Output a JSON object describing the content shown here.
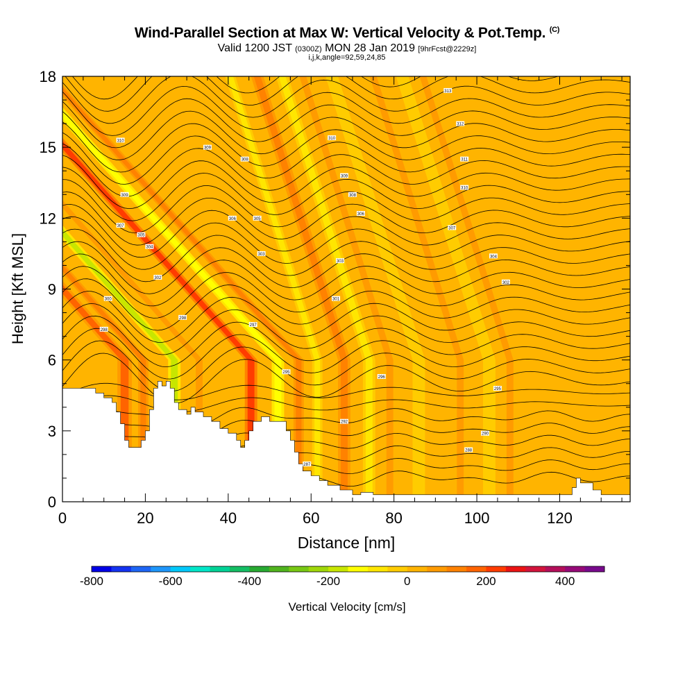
{
  "header": {
    "title": "Wind-Parallel Section at Max W: Vertical Velocity & Pot.Temp.",
    "title_mark": "(C)",
    "valid_prefix": "Valid 1200 JST",
    "valid_utc": "(0300Z)",
    "valid_date": "MON 28 Jan 2019",
    "forecast": "[9hrFcst@2229z]",
    "indices": "i,j,k,angle=92,59,24,85"
  },
  "chart_data": {
    "type": "heatmap",
    "xlabel": "Distance [nm]",
    "ylabel": "Height [Kft MSL]",
    "xlim": [
      0,
      137
    ],
    "ylim": [
      0,
      18
    ],
    "x_ticks": [
      0,
      20,
      40,
      60,
      80,
      100,
      120
    ],
    "y_ticks": [
      0,
      3,
      6,
      9,
      12,
      15,
      18
    ],
    "colorbar": {
      "label": "Vertical Velocity [cm/s]",
      "range": [
        -800,
        500
      ],
      "step": 50,
      "tick_values": [
        -800,
        -600,
        -400,
        -200,
        0,
        200,
        400
      ],
      "colors": [
        "#0000e6",
        "#1433f0",
        "#1e66f5",
        "#1e96fa",
        "#00c8fa",
        "#00e6c8",
        "#00d296",
        "#14be64",
        "#28aa32",
        "#50b41e",
        "#78c814",
        "#a0d70a",
        "#c8e600",
        "#ffff00",
        "#ffe600",
        "#ffcc00",
        "#ffb400",
        "#ff9b00",
        "#ff8200",
        "#ff6400",
        "#ff3c00",
        "#eb1414",
        "#d2143c",
        "#b40f5a",
        "#960a78",
        "#780a8c"
      ]
    },
    "background_value": 0,
    "velocity_bands": [
      {
        "x": 15,
        "w": 3.5,
        "v": 170
      },
      {
        "x": 19.5,
        "w": 2.5,
        "v": 120
      },
      {
        "x": 27,
        "w": 3,
        "v": -200
      },
      {
        "x": 33,
        "w": 3,
        "v": 80
      },
      {
        "x": 45.5,
        "w": 3,
        "v": 200
      },
      {
        "x": 52,
        "w": 3,
        "v": -120
      },
      {
        "x": 57,
        "w": 2.5,
        "v": 110
      },
      {
        "x": 61.5,
        "w": 2.5,
        "v": -80
      },
      {
        "x": 68,
        "w": 3,
        "v": 110
      },
      {
        "x": 74,
        "w": 3,
        "v": -70
      },
      {
        "x": 79,
        "w": 3,
        "v": 90
      },
      {
        "x": 86,
        "w": 3,
        "v": -50
      },
      {
        "x": 96,
        "w": 3,
        "v": 80
      },
      {
        "x": 103,
        "w": 3,
        "v": -40
      },
      {
        "x": 108,
        "w": 3,
        "v": 50
      },
      {
        "x": 118,
        "w": 3,
        "v": 40
      }
    ],
    "theta_contour_labels": [
      {
        "x": 14,
        "y": 15.3,
        "text": "310"
      },
      {
        "x": 15,
        "y": 13.0,
        "text": "309"
      },
      {
        "x": 14,
        "y": 11.7,
        "text": "307"
      },
      {
        "x": 19,
        "y": 11.3,
        "text": "305"
      },
      {
        "x": 21,
        "y": 10.8,
        "text": "304"
      },
      {
        "x": 23,
        "y": 9.5,
        "text": "302"
      },
      {
        "x": 11,
        "y": 8.6,
        "text": "300"
      },
      {
        "x": 10,
        "y": 7.3,
        "text": "298"
      },
      {
        "x": 35,
        "y": 15.0,
        "text": "309"
      },
      {
        "x": 44,
        "y": 14.5,
        "text": "308"
      },
      {
        "x": 41,
        "y": 12.0,
        "text": "306"
      },
      {
        "x": 47,
        "y": 12.0,
        "text": "305"
      },
      {
        "x": 48,
        "y": 10.5,
        "text": "303"
      },
      {
        "x": 29,
        "y": 7.8,
        "text": "298"
      },
      {
        "x": 46,
        "y": 7.5,
        "text": "297"
      },
      {
        "x": 54,
        "y": 5.5,
        "text": "295"
      },
      {
        "x": 65,
        "y": 15.4,
        "text": "310"
      },
      {
        "x": 68,
        "y": 13.8,
        "text": "309"
      },
      {
        "x": 70,
        "y": 13.0,
        "text": "308"
      },
      {
        "x": 72,
        "y": 12.2,
        "text": "306"
      },
      {
        "x": 67,
        "y": 10.2,
        "text": "303"
      },
      {
        "x": 66,
        "y": 8.6,
        "text": "301"
      },
      {
        "x": 77,
        "y": 5.3,
        "text": "296"
      },
      {
        "x": 68,
        "y": 3.4,
        "text": "292"
      },
      {
        "x": 59,
        "y": 1.6,
        "text": "287"
      },
      {
        "x": 93,
        "y": 17.4,
        "text": "313"
      },
      {
        "x": 96,
        "y": 16.0,
        "text": "312"
      },
      {
        "x": 97,
        "y": 14.5,
        "text": "311"
      },
      {
        "x": 97,
        "y": 13.3,
        "text": "310"
      },
      {
        "x": 94,
        "y": 11.6,
        "text": "307"
      },
      {
        "x": 104,
        "y": 10.4,
        "text": "304"
      },
      {
        "x": 107,
        "y": 9.3,
        "text": "302"
      },
      {
        "x": 105,
        "y": 4.8,
        "text": "295"
      },
      {
        "x": 102,
        "y": 2.9,
        "text": "290"
      },
      {
        "x": 98,
        "y": 2.2,
        "text": "288"
      }
    ],
    "terrain": [
      [
        0,
        4.8
      ],
      [
        8,
        4.8
      ],
      [
        8,
        4.6
      ],
      [
        10,
        4.6
      ],
      [
        10,
        4.4
      ],
      [
        12,
        4.4
      ],
      [
        12,
        4.2
      ],
      [
        13,
        4.2
      ],
      [
        13,
        3.8
      ],
      [
        14,
        3.8
      ],
      [
        14,
        3.3
      ],
      [
        15,
        3.3
      ],
      [
        15,
        2.6
      ],
      [
        16,
        2.6
      ],
      [
        16,
        2.3
      ],
      [
        19,
        2.3
      ],
      [
        19,
        2.6
      ],
      [
        20,
        2.6
      ],
      [
        20,
        3.0
      ],
      [
        21,
        3.0
      ],
      [
        21,
        3.9
      ],
      [
        22,
        3.9
      ],
      [
        22,
        4.8
      ],
      [
        23,
        4.8
      ],
      [
        23,
        5.1
      ],
      [
        24,
        5.1
      ],
      [
        24,
        4.9
      ],
      [
        25,
        4.9
      ],
      [
        25,
        5.1
      ],
      [
        26,
        5.1
      ],
      [
        26,
        4.8
      ],
      [
        27,
        4.8
      ],
      [
        27,
        4.2
      ],
      [
        28,
        4.2
      ],
      [
        28,
        3.9
      ],
      [
        30,
        3.9
      ],
      [
        30,
        3.7
      ],
      [
        31,
        3.7
      ],
      [
        31,
        4.0
      ],
      [
        32,
        4.0
      ],
      [
        32,
        3.8
      ],
      [
        34,
        3.8
      ],
      [
        34,
        3.6
      ],
      [
        36,
        3.6
      ],
      [
        36,
        3.4
      ],
      [
        38,
        3.4
      ],
      [
        38,
        3.1
      ],
      [
        40,
        3.1
      ],
      [
        40,
        2.9
      ],
      [
        42,
        2.9
      ],
      [
        42,
        2.6
      ],
      [
        43,
        2.6
      ],
      [
        43,
        2.3
      ],
      [
        44,
        2.3
      ],
      [
        44,
        2.6
      ],
      [
        45,
        2.6
      ],
      [
        45,
        3.0
      ],
      [
        46,
        3.0
      ],
      [
        46,
        3.4
      ],
      [
        48,
        3.4
      ],
      [
        48,
        3.6
      ],
      [
        50,
        3.6
      ],
      [
        50,
        3.4
      ],
      [
        54,
        3.4
      ],
      [
        54,
        3.0
      ],
      [
        55,
        3.0
      ],
      [
        55,
        2.6
      ],
      [
        56,
        2.6
      ],
      [
        56,
        2.1
      ],
      [
        57,
        2.1
      ],
      [
        57,
        1.6
      ],
      [
        58,
        1.6
      ],
      [
        58,
        1.3
      ],
      [
        60,
        1.3
      ],
      [
        60,
        1.1
      ],
      [
        62,
        1.1
      ],
      [
        62,
        0.9
      ],
      [
        64,
        0.9
      ],
      [
        64,
        0.7
      ],
      [
        67,
        0.7
      ],
      [
        67,
        0.5
      ],
      [
        70,
        0.5
      ],
      [
        70,
        0.3
      ],
      [
        72,
        0.3
      ],
      [
        72,
        0.4
      ],
      [
        75,
        0.4
      ],
      [
        75,
        0.3
      ],
      [
        123,
        0.3
      ],
      [
        123,
        0.6
      ],
      [
        124,
        0.6
      ],
      [
        124,
        1.0
      ],
      [
        125,
        1.0
      ],
      [
        125,
        0.8
      ],
      [
        128,
        0.8
      ],
      [
        128,
        0.5
      ],
      [
        130,
        0.5
      ],
      [
        130,
        0.3
      ],
      [
        137,
        0.3
      ]
    ]
  }
}
